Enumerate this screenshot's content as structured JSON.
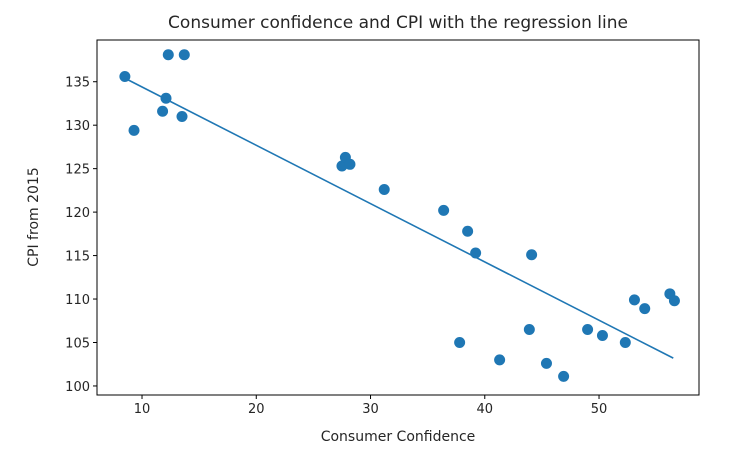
{
  "chart_data": {
    "type": "scatter",
    "title": "Consumer confidence and CPI with the regression line",
    "xlabel": "Consumer Confidence",
    "ylabel": "CPI from 2015",
    "xlim": [
      6.06,
      58.75
    ],
    "ylim": [
      98.96,
      139.8
    ],
    "xticks": [
      10,
      20,
      30,
      40,
      50
    ],
    "yticks": [
      100,
      105,
      110,
      115,
      120,
      125,
      130,
      135
    ],
    "color": "#1f77b4",
    "points": [
      [
        8.5,
        135.6
      ],
      [
        9.3,
        129.4
      ],
      [
        11.8,
        131.6
      ],
      [
        12.1,
        133.1
      ],
      [
        12.3,
        138.1
      ],
      [
        13.5,
        131.0
      ],
      [
        13.7,
        138.1
      ],
      [
        27.5,
        125.3
      ],
      [
        27.8,
        126.3
      ],
      [
        28.2,
        125.5
      ],
      [
        31.2,
        122.6
      ],
      [
        36.4,
        120.2
      ],
      [
        37.8,
        105.0
      ],
      [
        38.5,
        117.8
      ],
      [
        39.2,
        115.3
      ],
      [
        41.3,
        103.0
      ],
      [
        43.9,
        106.5
      ],
      [
        44.1,
        115.1
      ],
      [
        45.4,
        102.6
      ],
      [
        46.9,
        101.1
      ],
      [
        49.0,
        106.5
      ],
      [
        50.3,
        105.8
      ],
      [
        52.3,
        105.0
      ],
      [
        53.1,
        109.9
      ],
      [
        54.0,
        108.9
      ],
      [
        56.2,
        110.6
      ],
      [
        56.6,
        109.8
      ]
    ],
    "regression_line": {
      "x": [
        8.5,
        56.5
      ],
      "y": [
        135.4,
        103.2
      ]
    },
    "grid": false
  }
}
